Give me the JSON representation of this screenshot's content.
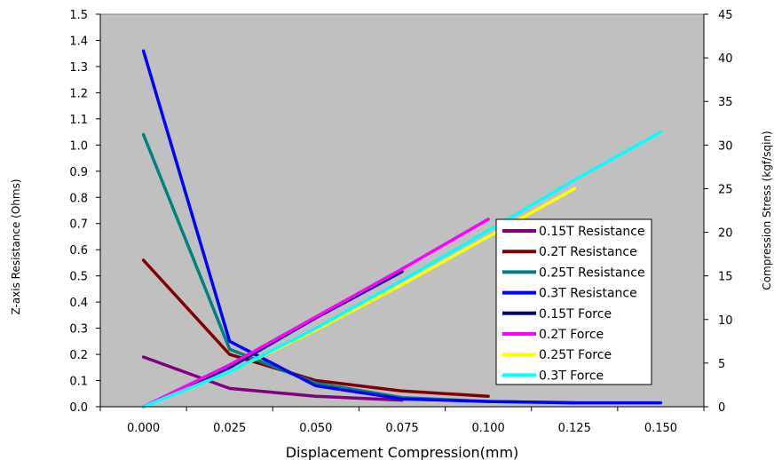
{
  "chart_data": {
    "type": "line",
    "xlabel": "Displacement Compression(mm)",
    "ylabel_left": "Z-axis Resistance (Ohms)",
    "ylabel_right": "Compression Stress (kgf/sqin)",
    "x_ticks": [
      "0.000",
      "0.025",
      "0.050",
      "0.075",
      "0.100",
      "0.125",
      "0.150"
    ],
    "y_left_ticks": [
      "0.0",
      "0.1",
      "0.2",
      "0.3",
      "0.4",
      "0.5",
      "0.6",
      "0.7",
      "0.8",
      "0.9",
      "1.0",
      "1.1",
      "1.2",
      "1.3",
      "1.4",
      "1.5"
    ],
    "y_right_ticks": [
      "0",
      "5",
      "10",
      "15",
      "20",
      "25",
      "30",
      "35",
      "40",
      "45"
    ],
    "xlim": [
      -0.0125,
      0.1625
    ],
    "ylim_left": [
      0,
      1.5
    ],
    "ylim_right": [
      0,
      45
    ],
    "grid": false,
    "plot_background": "#c0c0c0",
    "legend_position": "right-center",
    "series": [
      {
        "name": "0.15T Resistance",
        "axis": "left",
        "color": "#800080",
        "x": [
          0,
          0.025,
          0.05,
          0.075
        ],
        "y": [
          0.19,
          0.07,
          0.04,
          0.025
        ]
      },
      {
        "name": "0.2T Resistance",
        "axis": "left",
        "color": "#800000",
        "x": [
          0,
          0.025,
          0.05,
          0.075,
          0.1
        ],
        "y": [
          0.56,
          0.2,
          0.1,
          0.06,
          0.04
        ]
      },
      {
        "name": "0.25T Resistance",
        "axis": "left",
        "color": "#008080",
        "x": [
          0,
          0.025,
          0.05,
          0.075,
          0.1,
          0.125
        ],
        "y": [
          1.04,
          0.22,
          0.09,
          0.035,
          0.02,
          0.015
        ]
      },
      {
        "name": "0.3T Resistance",
        "axis": "left",
        "color": "#0000ff",
        "x": [
          0,
          0.025,
          0.05,
          0.075,
          0.1,
          0.125,
          0.15
        ],
        "y": [
          1.36,
          0.25,
          0.08,
          0.03,
          0.02,
          0.015,
          0.015
        ]
      },
      {
        "name": "0.15T Force",
        "axis": "right",
        "color": "#000080",
        "x": [
          0,
          0.025,
          0.05,
          0.075
        ],
        "y": [
          0,
          4.5,
          10.2,
          15.5
        ]
      },
      {
        "name": "0.2T Force",
        "axis": "right",
        "color": "#ff00ff",
        "x": [
          0,
          0.025,
          0.05,
          0.075,
          0.1
        ],
        "y": [
          0,
          4.8,
          10.3,
          15.8,
          21.5
        ]
      },
      {
        "name": "0.25T Force",
        "axis": "right",
        "color": "#ffff00",
        "x": [
          0,
          0.025,
          0.05,
          0.075,
          0.1,
          0.125
        ],
        "y": [
          0,
          4.0,
          8.8,
          14.0,
          19.5,
          25.0
        ]
      },
      {
        "name": "0.3T Force",
        "axis": "right",
        "color": "#00ffff",
        "x": [
          0,
          0.025,
          0.05,
          0.075,
          0.1,
          0.125,
          0.15
        ],
        "y": [
          0,
          4.0,
          9.0,
          14.5,
          20.2,
          26.0,
          31.5
        ]
      }
    ]
  }
}
